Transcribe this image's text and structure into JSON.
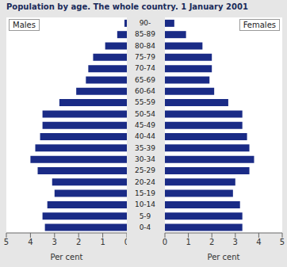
{
  "chart_data": {
    "type": "bar",
    "title": "Population by age. The whole country. 1 January 2001",
    "orientation": "horizontal",
    "categories": [
      "0-4",
      "5-9",
      "10-14",
      "15-19",
      "20-24",
      "25-29",
      "30-34",
      "35-39",
      "40-44",
      "45-49",
      "50-54",
      "55-59",
      "60-64",
      "65-69",
      "70-74",
      "75-79",
      "80-84",
      "85-89",
      "90-"
    ],
    "series": [
      {
        "name": "Males",
        "color": "#1a2b86",
        "values": [
          3.4,
          3.5,
          3.3,
          3.0,
          3.1,
          3.7,
          4.0,
          3.8,
          3.6,
          3.5,
          3.5,
          2.8,
          2.1,
          1.7,
          1.6,
          1.4,
          0.9,
          0.4,
          0.1
        ]
      },
      {
        "name": "Females",
        "color": "#1a2b86",
        "values": [
          3.3,
          3.3,
          3.2,
          2.9,
          3.0,
          3.6,
          3.8,
          3.6,
          3.5,
          3.3,
          3.3,
          2.7,
          2.1,
          1.9,
          2.0,
          2.0,
          1.6,
          0.9,
          0.4
        ]
      }
    ],
    "xlabel": "Per cent",
    "xlim": [
      0,
      5
    ],
    "xticks": [
      0,
      1,
      2,
      3,
      4,
      5
    ],
    "grid": false
  }
}
